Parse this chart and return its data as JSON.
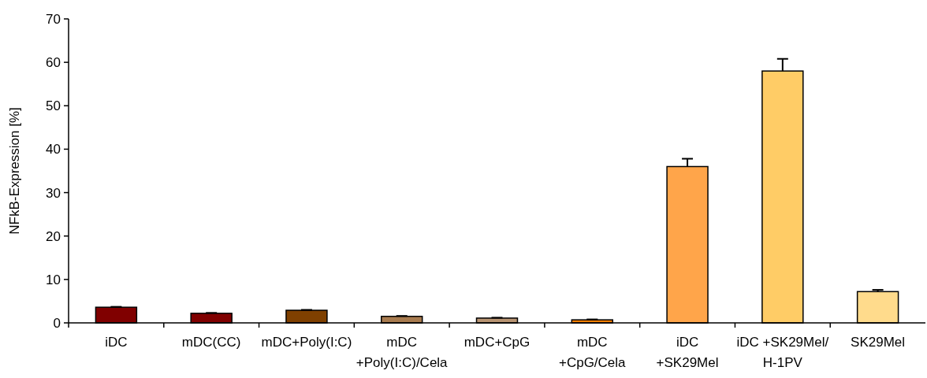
{
  "chart_data": {
    "type": "bar",
    "ylabel": "NFkB-Expression [%]",
    "categories": [
      "iDC",
      "mDC(CC)",
      "mDC+Poly(I:C)",
      "mDC\n+Poly(I:C)/Cela",
      "mDC+CpG",
      "mDC\n+CpG/Cela",
      "iDC\n+SK29Mel",
      "iDC +SK29Mel/\nH-1PV",
      "SK29Mel"
    ],
    "values": [
      3.6,
      2.2,
      2.9,
      1.5,
      1.1,
      0.7,
      36,
      58,
      7.2
    ],
    "errors": [
      [
        3.6,
        3.7
      ],
      [
        2.2,
        2.3
      ],
      [
        2.9,
        3.0
      ],
      [
        1.5,
        1.6
      ],
      [
        1.1,
        1.2
      ],
      [
        0.7,
        0.8
      ],
      [
        36,
        37.8
      ],
      [
        58,
        60.8
      ],
      [
        7.2,
        7.6
      ]
    ],
    "colors": [
      "#800000",
      "#800000",
      "#7f4000",
      "#a87b4f",
      "#b89472",
      "#ff8000",
      "#ffa54a",
      "#ffcc66",
      "#ffdb8c"
    ],
    "ylim": [
      0,
      70
    ],
    "yticks": [
      0,
      10,
      20,
      30,
      40,
      50,
      60,
      70
    ],
    "grid": false
  }
}
